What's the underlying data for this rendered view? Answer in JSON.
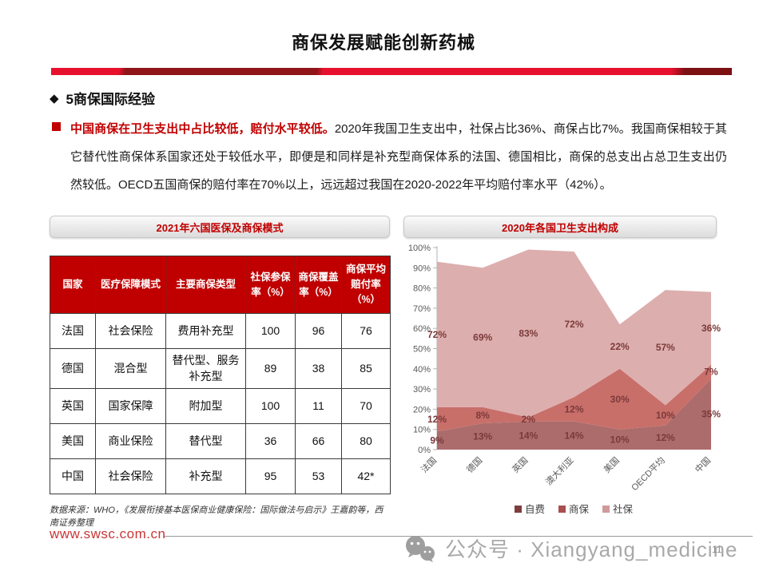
{
  "page": {
    "title": "商保发展赋能创新药械",
    "page_number": "11"
  },
  "section": {
    "bullet_symbol": "◆",
    "heading": "5商保国际经验"
  },
  "paragraph": {
    "lead": "中国商保在卫生支出中占比较低，赔付水平较低。",
    "body": "2020年我国卫生支出中，社保占比36%、商保占比7%。我国商保相较于其它替代性商保体系国家还处于较低水平，即便是和同样是补充型商保体系的法国、德国相比，商保的总支出占总卫生支出仍然较低。OECD五国商保的赔付率在70%以上，远远超过我国在2020-2022年平均赔付率水平（42%）。"
  },
  "table_panel": {
    "title": "2021年六国医保及商保模式",
    "headers": [
      "国家",
      "医疗保障模式",
      "主要商保类型",
      "社保参保率（%）",
      "商保覆盖率（%）",
      "商保平均赔付率（%）"
    ],
    "rows": [
      [
        "法国",
        "社会保险",
        "费用补充型",
        "100",
        "96",
        "76"
      ],
      [
        "德国",
        "混合型",
        "替代型、服务补充型",
        "89",
        "38",
        "85"
      ],
      [
        "英国",
        "国家保障",
        "附加型",
        "100",
        "11",
        "70"
      ],
      [
        "美国",
        "商业保险",
        "替代型",
        "36",
        "66",
        "80"
      ],
      [
        "中国",
        "社会保险",
        "补充型",
        "95",
        "53",
        "42*"
      ]
    ],
    "source": "数据来源：WHO，《发展衔接基本医保商业健康保险：国际做法与启示》王嘉韵等，西南证券整理"
  },
  "chart_panel": {
    "title": "2020年各国卫生支出构成"
  },
  "chart_data": {
    "type": "area",
    "stacked": true,
    "title": "2020年各国卫生支出构成",
    "categories": [
      "法国",
      "德国",
      "英国",
      "澳大利亚",
      "美国",
      "OECD平均",
      "中国"
    ],
    "series": [
      {
        "name": "自费",
        "color": "#ad6c6c",
        "legend_color": "#7e3d3d",
        "values": [
          9,
          13,
          14,
          14,
          10,
          12,
          35
        ]
      },
      {
        "name": "商保",
        "color": "#c86f6a",
        "legend_color": "#aa4f4d",
        "values": [
          12,
          8,
          2,
          12,
          30,
          10,
          7
        ]
      },
      {
        "name": "社保",
        "color": "#ddaeae",
        "legend_color": "#cf9a99",
        "values": [
          72,
          69,
          83,
          72,
          22,
          57,
          36
        ]
      }
    ],
    "ylim": [
      0,
      100
    ],
    "y_tick_labels": [
      "0%",
      "10%",
      "20%",
      "30%",
      "40%",
      "50%",
      "60%",
      "70%",
      "80%",
      "90%",
      "100%"
    ],
    "grid": false,
    "legend_position": "bottom",
    "label_color": "#7b3a3a",
    "axis_text_color": "#595959"
  },
  "footer": {
    "website": "www.swsc.com.cn",
    "wechat_label": "公众号 · Xiangyang_medicine"
  },
  "colors": {
    "accent_red": "#c00000",
    "divider_bright": "#e8112d",
    "divider_dark": "#8f1518"
  }
}
